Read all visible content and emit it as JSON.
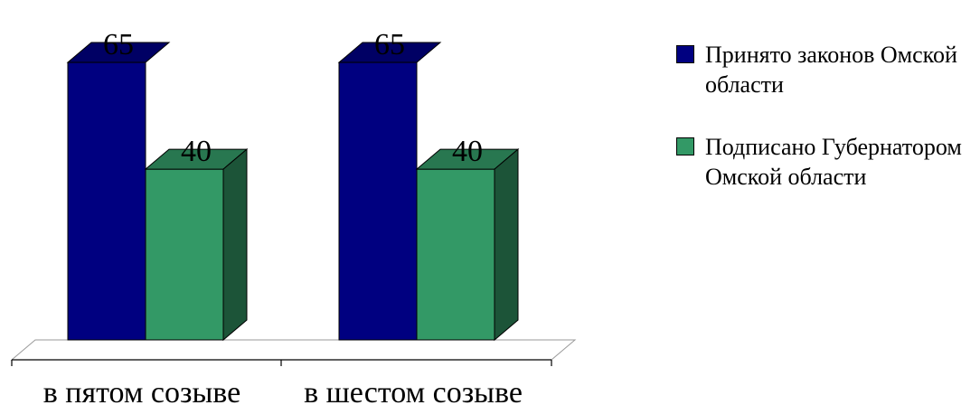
{
  "chart_data": {
    "type": "bar",
    "categories": [
      "в пятом созыве",
      "в шестом созыве"
    ],
    "series": [
      {
        "name": "Принято законов Омской области",
        "values": [
          65,
          65
        ],
        "color": "#000080"
      },
      {
        "name": "Подписано Губернатором Омской области",
        "values": [
          40,
          40
        ],
        "color": "#339966"
      }
    ],
    "data_labels": true,
    "three_d": true,
    "ylim": [
      0,
      72
    ],
    "grid": false,
    "legend_position": "right",
    "title": "",
    "xlabel": "",
    "ylabel": ""
  },
  "legend": {
    "items": [
      {
        "label": "Принято законов Омской области"
      },
      {
        "label": "Подписано Губернатором Омской области"
      }
    ]
  }
}
